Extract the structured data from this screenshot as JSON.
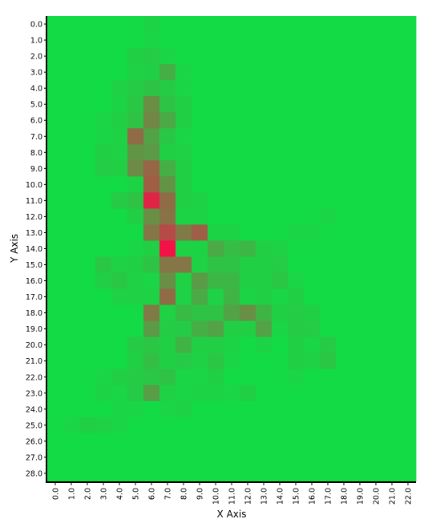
{
  "chart_data": {
    "type": "heatmap",
    "title": "",
    "xlabel": "X Axis",
    "ylabel": "Y Axis",
    "x_labels": [
      "0.0",
      "1.0",
      "2.0",
      "3.0",
      "4.0",
      "5.0",
      "6.0",
      "7.0",
      "8.0",
      "9.0",
      "10.0",
      "11.0",
      "12.0",
      "13.0",
      "14.0",
      "15.0",
      "16.0",
      "17.0",
      "18.0",
      "19.0",
      "20.0",
      "21.0",
      "22.0"
    ],
    "y_labels": [
      "0.0",
      "1.0",
      "2.0",
      "3.0",
      "4.0",
      "5.0",
      "6.0",
      "7.0",
      "8.0",
      "9.0",
      "10.0",
      "11.0",
      "12.0",
      "13.0",
      "14.0",
      "15.0",
      "16.0",
      "17.0",
      "18.0",
      "19.0",
      "20.0",
      "21.0",
      "22.0",
      "23.0",
      "24.0",
      "25.0",
      "26.0",
      "27.0",
      "28.0"
    ],
    "color_low": "#13DB45",
    "color_high": "#F41147",
    "value_range": [
      0,
      1
    ],
    "values": [
      [
        0,
        0,
        0,
        0,
        0,
        0,
        0.04,
        0,
        0,
        0,
        0,
        0,
        0,
        0,
        0,
        0,
        0,
        0,
        0,
        0,
        0,
        0,
        0
      ],
      [
        0,
        0,
        0,
        0,
        0,
        0,
        0.03,
        0,
        0,
        0,
        0,
        0,
        0,
        0,
        0,
        0,
        0,
        0,
        0,
        0,
        0,
        0,
        0
      ],
      [
        0,
        0,
        0,
        0,
        0,
        0.06,
        0.08,
        0.03,
        0,
        0,
        0,
        0,
        0,
        0,
        0,
        0,
        0,
        0,
        0,
        0,
        0,
        0,
        0
      ],
      [
        0,
        0,
        0,
        0,
        0,
        0.05,
        0.06,
        0.22,
        0.03,
        0,
        0,
        0,
        0,
        0,
        0,
        0,
        0,
        0,
        0,
        0,
        0,
        0,
        0
      ],
      [
        0,
        0,
        0,
        0,
        0.05,
        0.08,
        0.12,
        0.08,
        0.03,
        0,
        0,
        0,
        0,
        0,
        0,
        0,
        0,
        0,
        0,
        0,
        0,
        0,
        0
      ],
      [
        0,
        0,
        0,
        0,
        0.04,
        0.1,
        0.38,
        0.12,
        0.06,
        0,
        0,
        0,
        0,
        0,
        0,
        0,
        0,
        0,
        0,
        0,
        0,
        0,
        0
      ],
      [
        0,
        0,
        0,
        0.03,
        0.06,
        0.12,
        0.42,
        0.25,
        0.06,
        0,
        0,
        0,
        0,
        0,
        0,
        0,
        0,
        0,
        0,
        0,
        0,
        0,
        0
      ],
      [
        0,
        0,
        0,
        0.03,
        0.05,
        0.55,
        0.28,
        0.1,
        0.03,
        0,
        0,
        0,
        0,
        0,
        0,
        0,
        0,
        0,
        0,
        0,
        0,
        0,
        0
      ],
      [
        0,
        0,
        0,
        0.06,
        0.05,
        0.35,
        0.32,
        0.06,
        0.05,
        0,
        0,
        0,
        0,
        0,
        0,
        0,
        0,
        0,
        0,
        0,
        0,
        0,
        0
      ],
      [
        0,
        0,
        0,
        0.07,
        0.06,
        0.4,
        0.58,
        0.22,
        0.06,
        0,
        0,
        0,
        0,
        0,
        0,
        0,
        0,
        0,
        0,
        0,
        0,
        0,
        0
      ],
      [
        0,
        0,
        0,
        0,
        0,
        0.04,
        0.62,
        0.35,
        0.06,
        0,
        0,
        0,
        0,
        0,
        0,
        0,
        0,
        0,
        0,
        0,
        0,
        0,
        0
      ],
      [
        0,
        0,
        0,
        0,
        0.08,
        0.12,
        0.9,
        0.55,
        0.06,
        0.05,
        0,
        0,
        0,
        0,
        0,
        0,
        0,
        0,
        0,
        0,
        0,
        0,
        0
      ],
      [
        0,
        0,
        0,
        0,
        0,
        0.06,
        0.38,
        0.52,
        0.04,
        0.04,
        0,
        0,
        0,
        0,
        0,
        0,
        0,
        0.03,
        0,
        0,
        0,
        0,
        0
      ],
      [
        0,
        0,
        0,
        0,
        0,
        0,
        0.5,
        0.72,
        0.48,
        0.62,
        0.04,
        0.04,
        0,
        0,
        0,
        0.03,
        0.03,
        0,
        0,
        0,
        0,
        0,
        0
      ],
      [
        0,
        0,
        0,
        0,
        0,
        0.03,
        0.06,
        1.0,
        0.05,
        0.04,
        0.25,
        0.15,
        0.18,
        0.06,
        0.05,
        0,
        0,
        0,
        0,
        0,
        0,
        0,
        0
      ],
      [
        0,
        0,
        0,
        0.1,
        0.05,
        0.06,
        0.12,
        0.5,
        0.5,
        0.05,
        0.12,
        0.12,
        0.06,
        0.06,
        0.08,
        0,
        0,
        0,
        0,
        0,
        0,
        0,
        0
      ],
      [
        0,
        0,
        0,
        0.06,
        0.1,
        0.05,
        0.03,
        0.38,
        0.05,
        0.32,
        0.18,
        0.18,
        0.06,
        0.06,
        0.1,
        0.03,
        0,
        0,
        0,
        0,
        0,
        0,
        0
      ],
      [
        0,
        0,
        0,
        0,
        0.05,
        0.05,
        0.05,
        0.55,
        0.05,
        0.25,
        0.05,
        0.2,
        0.04,
        0.06,
        0.03,
        0.06,
        0,
        0,
        0,
        0,
        0,
        0,
        0
      ],
      [
        0,
        0,
        0,
        0,
        0,
        0,
        0.48,
        0.05,
        0.16,
        0.12,
        0.12,
        0.28,
        0.38,
        0.2,
        0.06,
        0.08,
        0.06,
        0,
        0,
        0,
        0,
        0,
        0
      ],
      [
        0,
        0,
        0,
        0,
        0,
        0,
        0.32,
        0.08,
        0.08,
        0.22,
        0.28,
        0.06,
        0.06,
        0.28,
        0.03,
        0.08,
        0.08,
        0,
        0,
        0,
        0,
        0,
        0
      ],
      [
        0,
        0,
        0,
        0,
        0,
        0.08,
        0.1,
        0.06,
        0.2,
        0.06,
        0.06,
        0.04,
        0,
        0.04,
        0,
        0.06,
        0.03,
        0.08,
        0,
        0,
        0,
        0,
        0
      ],
      [
        0,
        0,
        0,
        0,
        0,
        0.06,
        0.14,
        0.06,
        0.08,
        0.05,
        0.1,
        0.03,
        0,
        0,
        0,
        0.06,
        0.05,
        0.1,
        0,
        0,
        0,
        0,
        0
      ],
      [
        0,
        0,
        0,
        0.03,
        0.06,
        0.08,
        0.1,
        0.12,
        0.03,
        0.03,
        0.06,
        0,
        0,
        0,
        0,
        0.03,
        0,
        0,
        0,
        0,
        0,
        0,
        0
      ],
      [
        0,
        0,
        0,
        0.04,
        0.03,
        0.08,
        0.3,
        0.05,
        0.03,
        0.04,
        0.04,
        0.03,
        0.06,
        0,
        0,
        0,
        0,
        0,
        0,
        0,
        0,
        0,
        0
      ],
      [
        0,
        0,
        0,
        0,
        0.03,
        0.03,
        0,
        0.03,
        0.05,
        0,
        0,
        0,
        0,
        0,
        0,
        0,
        0,
        0,
        0,
        0,
        0,
        0,
        0
      ],
      [
        0,
        0.03,
        0.06,
        0.05,
        0.03,
        0,
        0,
        0,
        0,
        0,
        0,
        0,
        0,
        0,
        0,
        0,
        0,
        0,
        0,
        0,
        0,
        0,
        0
      ],
      [
        0,
        0,
        0,
        0,
        0,
        0,
        0,
        0,
        0,
        0,
        0,
        0,
        0,
        0,
        0,
        0,
        0,
        0,
        0,
        0,
        0,
        0,
        0
      ],
      [
        0,
        0,
        0,
        0,
        0,
        0,
        0,
        0,
        0,
        0,
        0,
        0,
        0,
        0,
        0,
        0,
        0,
        0,
        0,
        0,
        0,
        0,
        0
      ],
      [
        0,
        0,
        0,
        0,
        0,
        0,
        0,
        0,
        0,
        0,
        0,
        0,
        0,
        0,
        0,
        0,
        0,
        0,
        0,
        0,
        0,
        0,
        0
      ]
    ]
  }
}
